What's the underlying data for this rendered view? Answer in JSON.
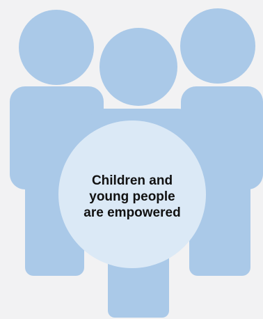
{
  "diagram": {
    "caption_lines": [
      "Children and",
      "young people",
      "are empowered"
    ],
    "figures": [
      "left-person",
      "center-person",
      "right-person"
    ]
  },
  "colors": {
    "background": "#f2f2f3",
    "figure_fill": "#aac9e8",
    "center_circle_fill": "#dbe9f6",
    "text": "#111111"
  }
}
